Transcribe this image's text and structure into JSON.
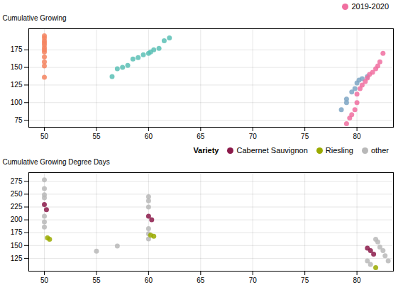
{
  "chart_data": [
    {
      "type": "scatter",
      "ylabel": "Cumulative Growing",
      "xlim": [
        48.5,
        83.5
      ],
      "ylim": [
        65,
        205
      ],
      "xticks": [
        50,
        55,
        60,
        65,
        70,
        75,
        80
      ],
      "yticks": [
        75,
        100,
        125,
        150,
        175
      ],
      "grid": true,
      "legend": "upper right",
      "series": [
        {
          "color": "#F4845F",
          "x": [
            50,
            50,
            50,
            50,
            50,
            50,
            50,
            50,
            50,
            50,
            50,
            50
          ],
          "y": [
            195,
            192,
            188,
            185,
            182,
            178,
            175,
            172,
            165,
            158,
            152,
            136
          ]
        },
        {
          "color": "#5bbfb5",
          "x": [
            56.5,
            57,
            57.5,
            58,
            58.5,
            59,
            59.5,
            60,
            60.2,
            60.5,
            61,
            61.5,
            62
          ],
          "y": [
            137,
            148,
            150,
            153,
            162,
            164,
            168,
            170,
            172,
            175,
            177,
            188,
            192
          ]
        },
        {
          "color": "#7EA6C4",
          "x": [
            78.5,
            79,
            79,
            79.5,
            79.8,
            80,
            80.2,
            80.5,
            81
          ],
          "y": [
            90,
            100,
            105,
            115,
            120,
            128,
            132,
            134,
            137
          ]
        },
        {
          "name": "2019-2020",
          "color": "#F06FA0",
          "x": [
            79,
            79.3,
            79.5,
            79.8,
            80,
            80,
            80.3,
            80.5,
            80.8,
            81,
            81.2,
            81.5,
            81.8,
            82,
            82.2,
            82.5
          ],
          "y": [
            70,
            78,
            83,
            90,
            100,
            112,
            120,
            125,
            130,
            135,
            140,
            143,
            148,
            152,
            158,
            170
          ]
        }
      ]
    },
    {
      "type": "scatter",
      "ylabel": "Cumulative Growing Degree Days",
      "xlim": [
        48.5,
        83.5
      ],
      "ylim": [
        100,
        292
      ],
      "xticks": [
        50,
        55,
        60,
        65,
        70,
        75,
        80
      ],
      "yticks": [
        125,
        150,
        175,
        200,
        225,
        250,
        275
      ],
      "grid": true,
      "legend": "upper right",
      "legend_title": "Variety",
      "series": [
        {
          "name": "Cabernet Sauvignon",
          "color": "#8B1A4A",
          "x": [
            50,
            50.2,
            60,
            60.3,
            81,
            81.3,
            81.6
          ],
          "y": [
            230,
            220,
            207,
            200,
            145,
            140,
            133
          ]
        },
        {
          "name": "Riesling",
          "color": "#9aaa00",
          "x": [
            50.3,
            50.5,
            60.2,
            60.5,
            81.8
          ],
          "y": [
            165,
            162,
            170,
            168,
            107
          ]
        },
        {
          "name": "other",
          "color": "#b8b8b8",
          "x": [
            50,
            50,
            50,
            50,
            50,
            50,
            50,
            55,
            57,
            60,
            60,
            60,
            60,
            60,
            60,
            81,
            81.3,
            81.8,
            82,
            82.2,
            82.5,
            82.7,
            83
          ],
          "y": [
            278,
            261,
            249,
            243,
            207,
            196,
            186,
            139,
            149,
            245,
            237,
            225,
            183,
            173,
            163,
            120,
            113,
            162,
            157,
            147,
            140,
            130,
            120
          ]
        }
      ]
    }
  ]
}
